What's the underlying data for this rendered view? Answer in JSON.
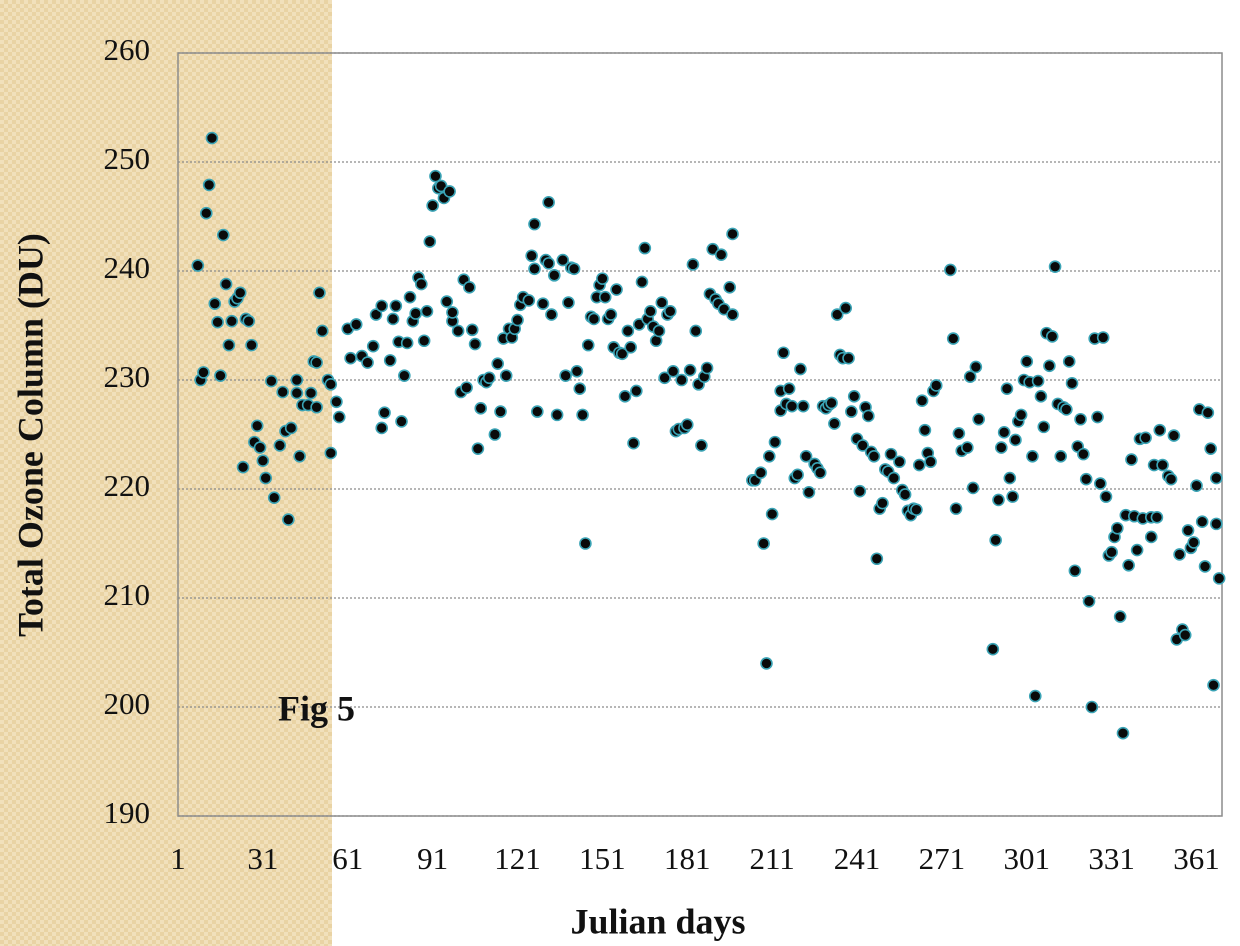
{
  "chart_data": {
    "type": "scatter",
    "xlabel": "Julian days",
    "ylabel": "Total Ozone Column (DU)",
    "annotation": "Fig 5",
    "xlim": [
      1,
      370
    ],
    "xticks": [
      1,
      31,
      61,
      91,
      121,
      151,
      181,
      211,
      241,
      271,
      301,
      331,
      361
    ],
    "ylim": [
      190,
      260
    ],
    "yticks": [
      190,
      200,
      210,
      220,
      230,
      240,
      250,
      260
    ],
    "grid": true,
    "x": [
      8,
      9,
      10,
      11,
      12,
      13,
      14,
      15,
      16,
      17,
      18,
      19,
      20,
      21,
      22,
      23,
      24,
      25,
      26,
      27,
      28,
      29,
      30,
      31,
      32,
      34,
      35,
      37,
      38,
      39,
      40,
      41,
      43,
      43,
      44,
      45,
      47,
      48,
      49,
      50,
      50,
      51,
      52,
      54,
      55,
      55,
      57,
      58,
      61,
      62,
      64,
      66,
      68,
      70,
      71,
      73,
      73,
      74,
      76,
      77,
      78,
      79,
      80,
      81,
      82,
      83,
      84,
      85,
      86,
      87,
      88,
      89,
      90,
      91,
      92,
      93,
      94,
      95,
      96,
      97,
      98,
      98,
      100,
      101,
      102,
      103,
      104,
      105,
      106,
      107,
      108,
      109,
      110,
      111,
      113,
      114,
      115,
      116,
      117,
      118,
      119,
      120,
      121,
      122,
      123,
      125,
      126,
      127,
      127,
      128,
      130,
      131,
      132,
      132,
      133,
      134,
      135,
      137,
      138,
      139,
      140,
      141,
      142,
      143,
      144,
      145,
      146,
      147,
      148,
      149,
      150,
      151,
      152,
      153,
      154,
      155,
      156,
      157,
      158,
      159,
      160,
      161,
      162,
      163,
      164,
      165,
      166,
      167,
      168,
      169,
      170,
      171,
      172,
      173,
      174,
      175,
      176,
      177,
      178,
      179,
      180,
      181,
      182,
      183,
      184,
      185,
      186,
      187,
      188,
      189,
      190,
      191,
      192,
      193,
      194,
      196,
      197,
      197,
      204,
      205,
      207,
      208,
      209,
      210,
      211,
      212,
      214,
      214,
      215,
      216,
      217,
      218,
      219,
      220,
      221,
      222,
      223,
      224,
      226,
      227,
      228,
      229,
      230,
      231,
      232,
      233,
      234,
      235,
      236,
      237,
      238,
      239,
      240,
      241,
      242,
      243,
      244,
      245,
      246,
      247,
      248,
      249,
      250,
      251,
      252,
      253,
      254,
      256,
      257,
      258,
      259,
      260,
      261,
      262,
      263,
      264,
      265,
      266,
      267,
      268,
      269,
      274,
      275,
      276,
      277,
      278,
      280,
      281,
      282,
      283,
      284,
      289,
      290,
      291,
      292,
      293,
      294,
      295,
      296,
      297,
      298,
      299,
      300,
      301,
      302,
      303,
      304,
      305,
      306,
      307,
      308,
      309,
      310,
      311,
      312,
      313,
      314,
      315,
      316,
      317,
      318,
      319,
      320,
      321,
      322,
      323,
      324,
      325,
      326,
      327,
      328,
      329,
      330,
      331,
      332,
      333,
      334,
      335,
      336,
      337,
      338,
      339,
      340,
      341,
      342,
      343,
      345,
      345,
      346,
      347,
      348,
      349,
      351,
      352,
      353,
      354,
      355,
      356,
      357,
      358,
      359,
      360,
      361,
      362,
      363,
      364,
      365,
      366,
      367,
      368,
      368,
      369
    ],
    "series": [
      {
        "color": "#0a0a0a",
        "edgecolor": "#3aa3b5",
        "values": [
          240.5,
          230,
          230.7,
          245.3,
          247.9,
          252.2,
          237,
          235.3,
          230.4,
          243.3,
          238.8,
          233.2,
          235.4,
          237.2,
          237.5,
          238,
          222,
          235.6,
          235.4,
          233.2,
          224.3,
          225.8,
          223.8,
          222.6,
          221,
          229.9,
          219.2,
          224,
          228.9,
          225.3,
          217.2,
          225.6,
          228.8,
          230,
          223,
          227.7,
          227.7,
          228.8,
          231.7,
          231.6,
          227.5,
          238,
          234.5,
          230,
          229.6,
          223.3,
          228,
          226.6,
          234.7,
          232,
          235.1,
          232.2,
          231.6,
          233.1,
          236,
          225.6,
          236.8,
          227,
          231.8,
          235.6,
          236.8,
          233.5,
          226.2,
          230.4,
          233.4,
          237.6,
          235.4,
          236.1,
          239.4,
          238.8,
          233.6,
          236.3,
          242.7,
          246,
          248.7,
          247.6,
          247.8,
          246.7,
          237.2,
          247.3,
          235.4,
          236.2,
          234.5,
          228.9,
          239.2,
          229.3,
          238.5,
          234.6,
          233.3,
          223.7,
          227.4,
          230,
          229.8,
          230.2,
          225,
          231.5,
          227.1,
          233.8,
          230.4,
          234.7,
          233.9,
          234.7,
          235.5,
          236.9,
          237.6,
          237.3,
          241.4,
          244.3,
          240.2,
          227.1,
          237,
          241,
          240.7,
          246.3,
          236,
          239.6,
          226.8,
          241,
          230.4,
          237.1,
          240.3,
          240.2,
          230.8,
          229.2,
          226.8,
          215,
          233.2,
          235.8,
          235.6,
          237.6,
          238.7,
          239.3,
          237.6,
          235.6,
          236,
          233,
          238.3,
          232.5,
          232.4,
          228.5,
          234.5,
          233,
          224.2,
          229,
          235.1,
          239,
          242.1,
          235.6,
          236.3,
          234.9,
          233.6,
          234.5,
          237.1,
          230.2,
          236,
          236.3,
          230.8,
          225.3,
          225.5,
          230,
          225.6,
          225.9,
          230.9,
          240.6,
          234.5,
          229.6,
          224,
          230.3,
          231.1,
          237.9,
          242,
          237.4,
          237,
          241.5,
          236.5,
          238.5,
          243.4,
          236,
          220.8,
          220.8,
          221.5,
          215,
          204,
          223,
          217.7,
          224.3,
          227.2,
          229,
          232.5,
          227.8,
          229.2,
          227.6,
          221,
          221.3,
          231,
          227.6,
          223,
          219.7,
          222.3,
          221.9,
          221.5,
          227.6,
          227.4,
          227.7,
          227.9,
          226,
          236,
          232.3,
          232,
          236.6,
          232,
          227.1,
          228.5,
          224.6,
          219.8,
          224,
          227.5,
          226.7,
          223.4,
          223,
          213.6,
          218.2,
          218.7,
          221.8,
          221.6,
          223.2,
          221,
          222.5,
          219.9,
          219.5,
          218,
          217.6,
          218.2,
          218.1,
          222.2,
          228.1,
          225.4,
          223.3,
          222.5,
          229,
          229.5,
          240.1,
          233.8,
          218.2,
          225.1,
          223.5,
          223.8,
          230.3,
          220.1,
          231.2,
          226.4,
          205.3,
          215.3,
          219,
          223.8,
          225.2,
          229.2,
          221,
          219.3,
          224.5,
          226.2,
          226.8,
          230,
          231.7,
          229.8,
          223,
          201,
          229.9,
          228.5,
          225.7,
          234.3,
          231.3,
          234,
          240.4,
          227.8,
          223,
          227.5,
          227.3,
          231.7,
          229.7,
          212.5,
          223.9,
          226.4,
          223.2,
          220.9,
          209.7,
          200,
          233.8,
          226.6,
          220.5,
          233.9,
          219.3,
          213.9,
          214.2,
          215.6,
          216.4,
          208.3,
          197.6,
          217.6,
          213,
          222.7,
          217.5,
          214.4,
          224.6,
          217.3,
          224.7,
          215.6,
          217.4,
          222.2,
          217.4,
          225.4,
          222.2,
          221.2,
          220.9,
          224.9,
          206.2,
          214,
          207.1,
          206.6,
          216.2,
          214.6,
          215.1,
          220.3,
          227.3,
          217,
          212.9,
          227,
          223.7,
          202,
          216.8,
          221,
          211.8
        ]
      }
    ]
  }
}
